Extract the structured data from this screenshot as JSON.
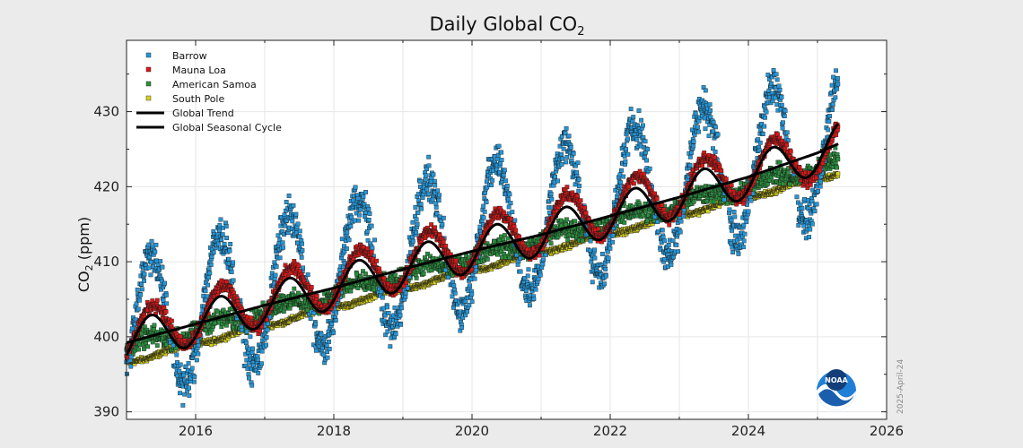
{
  "chart_data": {
    "type": "scatter",
    "title": "Daily Global CO",
    "title_sub": "2",
    "ylabel": "CO",
    "ylabel_sub": "2",
    "ylabel_unit": " (ppm)",
    "xlim": [
      2015,
      2026
    ],
    "ylim": [
      389,
      439.5
    ],
    "x_ticks": [
      2016,
      2018,
      2020,
      2022,
      2024,
      2026
    ],
    "y_ticks": [
      390,
      400,
      410,
      420,
      430
    ],
    "grid": true,
    "legend_position": "top-left",
    "date_stamp": "2025-April-24",
    "logo": "NOAA",
    "series": [
      {
        "name": "Barrow",
        "kind": "points",
        "color": "#2596d8",
        "start": 2015.0,
        "end": 2025.3,
        "base": 400.9,
        "slope": 2.45,
        "amp": 9.3,
        "peak_phase": 0.35,
        "noise": 1.8
      },
      {
        "name": "Mauna Loa",
        "kind": "points",
        "color": "#d81818",
        "start": 2015.0,
        "end": 2025.3,
        "base": 400.0,
        "slope": 2.45,
        "amp": 3.3,
        "peak_phase": 0.38,
        "noise": 0.6
      },
      {
        "name": "American Samoa",
        "kind": "points",
        "color": "#2a8f3e",
        "start": 2015.0,
        "end": 2025.3,
        "base": 398.5,
        "slope": 2.4,
        "amp": 0.7,
        "peak_phase": 0.3,
        "noise": 0.9
      },
      {
        "name": "South Pole",
        "kind": "points",
        "color": "#d8d21c",
        "start": 2015.0,
        "end": 2025.3,
        "base": 396.6,
        "slope": 2.45,
        "amp": 0.25,
        "peak_phase": 0.75,
        "noise": 0.25
      },
      {
        "name": "Global Trend",
        "kind": "line",
        "color": "#000000",
        "x": [
          2015.0,
          2016.0,
          2017.0,
          2018.0,
          2019.0,
          2020.0,
          2021.0,
          2022.0,
          2023.0,
          2024.0,
          2025.0,
          2025.3
        ],
        "y": [
          399.2,
          401.7,
          404.2,
          406.5,
          409.0,
          411.4,
          413.6,
          416.1,
          418.6,
          421.3,
          424.5,
          425.7
        ]
      },
      {
        "name": "Global Seasonal Cycle",
        "kind": "line",
        "color": "#000000",
        "amp": 2.8,
        "peak_phase": 0.35
      }
    ]
  }
}
